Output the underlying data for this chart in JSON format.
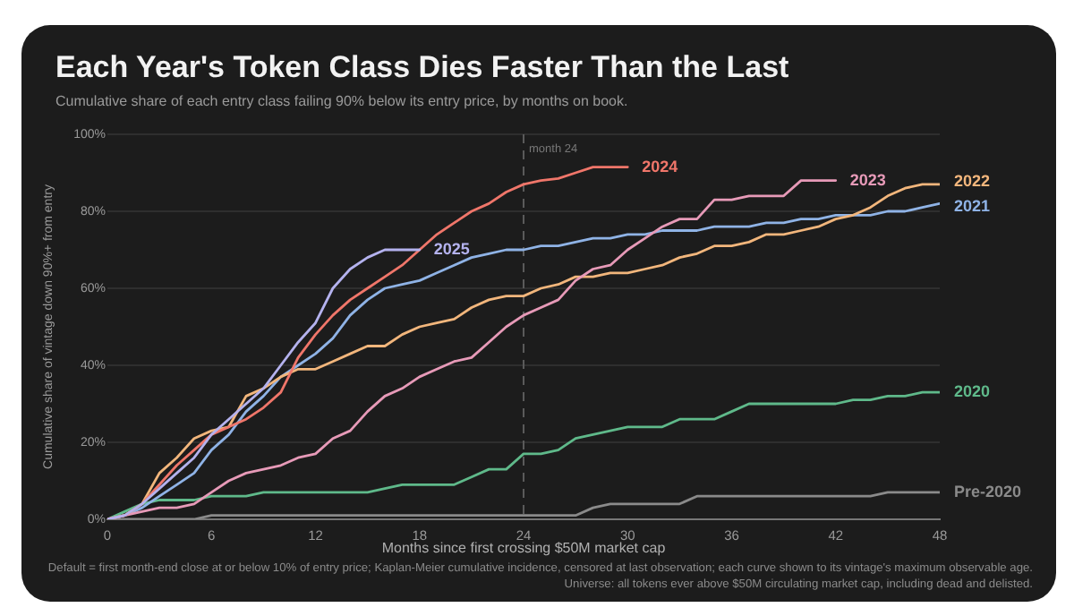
{
  "chart_data": {
    "type": "line",
    "title": "Each Year's Token Class Dies Faster Than the Last",
    "subtitle": "Cumulative share of each entry class failing 90% below its entry price, by months on book.",
    "xlabel": "Months since first crossing $50M market cap",
    "ylabel": "Cumulative share of vintage down 90%+ from entry",
    "annotations": [
      "Default = first month-end close at or below 10% of entry price; Kaplan-Meier cumulative incidence, censored at last observation; each curve shown to its vintage's maximum observable age.",
      "Universe: all tokens ever above $50M circulating market cap, including dead and delisted."
    ],
    "x": [
      0,
      1,
      2,
      3,
      4,
      5,
      6,
      7,
      8,
      9,
      10,
      11,
      12,
      13,
      14,
      15,
      16,
      17,
      18,
      19,
      20,
      21,
      22,
      23,
      24,
      25,
      26,
      27,
      28,
      29,
      30,
      31,
      32,
      33,
      34,
      35,
      36,
      37,
      38,
      39,
      40,
      41,
      42,
      43,
      44,
      45,
      46,
      47,
      48
    ],
    "xlim": [
      0,
      48
    ],
    "xticks": [
      0,
      6,
      12,
      18,
      24,
      30,
      36,
      42,
      48
    ],
    "ylim": [
      0,
      100
    ],
    "yticks": [
      {
        "value": 0,
        "label": "0%"
      },
      {
        "value": 20,
        "label": "20%"
      },
      {
        "value": 40,
        "label": "40%"
      },
      {
        "value": 60,
        "label": "60%"
      },
      {
        "value": 80,
        "label": "80%"
      },
      {
        "value": 100,
        "label": "100%"
      }
    ],
    "grid": "y",
    "legend": false,
    "marker": "none",
    "line_style": "solid",
    "ref_lines": [
      {
        "axis": "x",
        "value": 24,
        "label": "month 24",
        "color": "#5a5a5a",
        "line_style": "dashed"
      }
    ],
    "series": [
      {
        "name": "2025",
        "color": "#b4b2ee",
        "values": [
          0,
          1,
          4,
          8,
          12,
          16,
          22,
          26,
          30,
          34,
          40,
          46,
          51,
          60,
          65,
          68,
          70,
          70,
          70,
          null,
          null,
          null,
          null,
          null,
          null,
          null,
          null,
          null,
          null,
          null,
          null,
          null,
          null,
          null,
          null,
          null,
          null,
          null,
          null,
          null,
          null,
          null,
          null,
          null,
          null,
          null,
          null,
          null,
          null
        ]
      },
      {
        "name": "2024",
        "color": "#f0766a",
        "values": [
          0,
          1,
          4,
          9,
          14,
          18,
          22,
          24,
          26,
          29,
          33,
          42,
          48,
          53,
          57,
          60,
          63,
          66,
          70,
          74,
          77,
          80,
          82,
          85,
          87,
          88,
          88.5,
          90,
          91.5,
          91.5,
          91.5,
          null,
          null,
          null,
          null,
          null,
          null,
          null,
          null,
          null,
          null,
          null,
          null,
          null,
          null,
          null,
          null,
          null,
          null
        ]
      },
      {
        "name": "2023",
        "color": "#e79ab8",
        "values": [
          0,
          1,
          2,
          3,
          3,
          4,
          7,
          10,
          12,
          13,
          14,
          16,
          17,
          21,
          23,
          28,
          32,
          34,
          37,
          39,
          41,
          42,
          46,
          50,
          53,
          55,
          57,
          62,
          65,
          66,
          70,
          73,
          76,
          78,
          78,
          83,
          83,
          84,
          84,
          84,
          88,
          88,
          88,
          null,
          null,
          null,
          null,
          null,
          null
        ]
      },
      {
        "name": "2022",
        "color": "#f2b67c",
        "values": [
          0,
          1,
          4,
          12,
          16,
          21,
          23,
          24,
          32,
          34,
          37,
          39,
          39,
          41,
          43,
          45,
          45,
          48,
          50,
          51,
          52,
          55,
          57,
          58,
          58,
          60,
          61,
          63,
          63,
          64,
          64,
          65,
          66,
          68,
          69,
          71,
          71,
          72,
          74,
          74,
          75,
          76,
          78,
          79,
          81,
          84,
          86,
          87,
          87
        ]
      },
      {
        "name": "2021",
        "color": "#8fb3e6",
        "values": [
          0,
          1,
          3,
          6,
          9,
          12,
          18,
          22,
          28,
          32,
          37,
          40,
          43,
          47,
          53,
          57,
          60,
          61,
          62,
          64,
          66,
          68,
          69,
          70,
          70,
          71,
          71,
          72,
          73,
          73,
          74,
          74,
          75,
          75,
          75,
          76,
          76,
          76,
          77,
          77,
          78,
          78,
          79,
          79,
          79,
          80,
          80,
          81,
          82
        ]
      },
      {
        "name": "2020",
        "color": "#5fb98a",
        "values": [
          0,
          2,
          4,
          5,
          5,
          5,
          6,
          6,
          6,
          7,
          7,
          7,
          7,
          7,
          7,
          7,
          8,
          9,
          9,
          9,
          9,
          11,
          13,
          13,
          17,
          17,
          18,
          21,
          22,
          23,
          24,
          24,
          24,
          26,
          26,
          26,
          28,
          30,
          30,
          30,
          30,
          30,
          30,
          31,
          31,
          32,
          32,
          33,
          33
        ]
      },
      {
        "name": "Pre-2020",
        "color": "#8a8a8a",
        "values": [
          0,
          0,
          0,
          0,
          0,
          0,
          1,
          1,
          1,
          1,
          1,
          1,
          1,
          1,
          1,
          1,
          1,
          1,
          1,
          1,
          1,
          1,
          1,
          1,
          1,
          1,
          1,
          1,
          3,
          4,
          4,
          4,
          4,
          4,
          6,
          6,
          6,
          6,
          6,
          6,
          6,
          6,
          6,
          6,
          6,
          7,
          7,
          7,
          7
        ]
      }
    ]
  }
}
